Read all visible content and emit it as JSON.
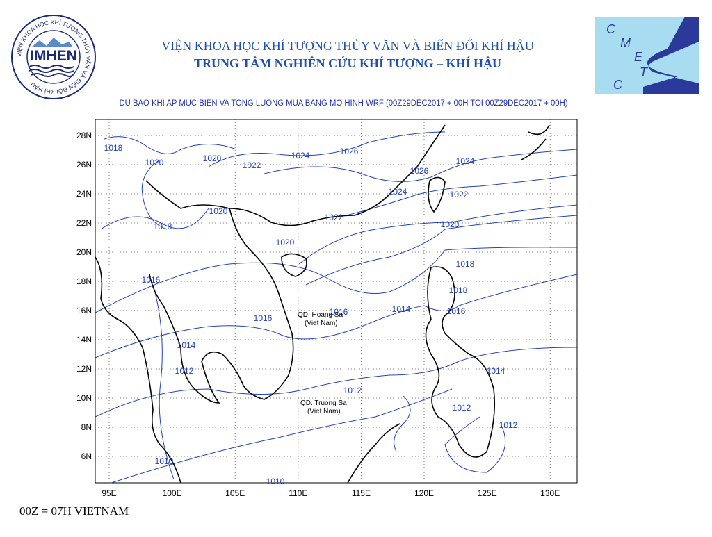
{
  "header": {
    "line1": "VIỆN KHOA HỌC KHÍ TƯỢNG THỦY VĂN VÀ BIẾN ĐỔI KHÍ HẬU",
    "line2": "TRUNG TÂM NGHIÊN CỨU KHÍ TƯỢNG – KHÍ HẬU"
  },
  "logo_left": {
    "ring_text": "VIỆN KHOA HỌC KHÍ TƯỢNG THỦY VĂN VÀ BIẾN ĐỔI KHÍ HẬU",
    "name": "IMHEN"
  },
  "logo_right": {
    "letters": [
      "C",
      "M",
      "E",
      "T",
      "C"
    ]
  },
  "map": {
    "title": "DU BAO KHI AP MUC BIEN VA TONG LUONG MUA BANG MO HINH WRF (00Z29DEC2017 + 00H TOI 00Z29DEC2017 + 00H)",
    "lat_labels": [
      "28N",
      "26N",
      "24N",
      "22N",
      "20N",
      "18N",
      "16N",
      "14N",
      "12N",
      "10N",
      "8N",
      "6N"
    ],
    "lon_labels": [
      "95E",
      "100E",
      "105E",
      "110E",
      "115E",
      "120E",
      "125E",
      "130E"
    ],
    "contour_labels": [
      "1018",
      "1020",
      "1020",
      "1022",
      "1024",
      "1026",
      "1026",
      "1024",
      "1024",
      "1022",
      "1020",
      "1022",
      "1018",
      "1020",
      "1020",
      "1018",
      "1016",
      "1018",
      "1014",
      "1016",
      "1016",
      "1016",
      "1014",
      "1012",
      "1014",
      "1012",
      "1012",
      "1012",
      "1010",
      "1010"
    ],
    "annotations": [
      {
        "name": "QD. Hoang Sa",
        "note": "(Viet Nam)"
      },
      {
        "name": "QD. Truong Sa",
        "note": "(Viet Nam)"
      }
    ]
  },
  "footer": "00Z = 07H VIETNAM"
}
